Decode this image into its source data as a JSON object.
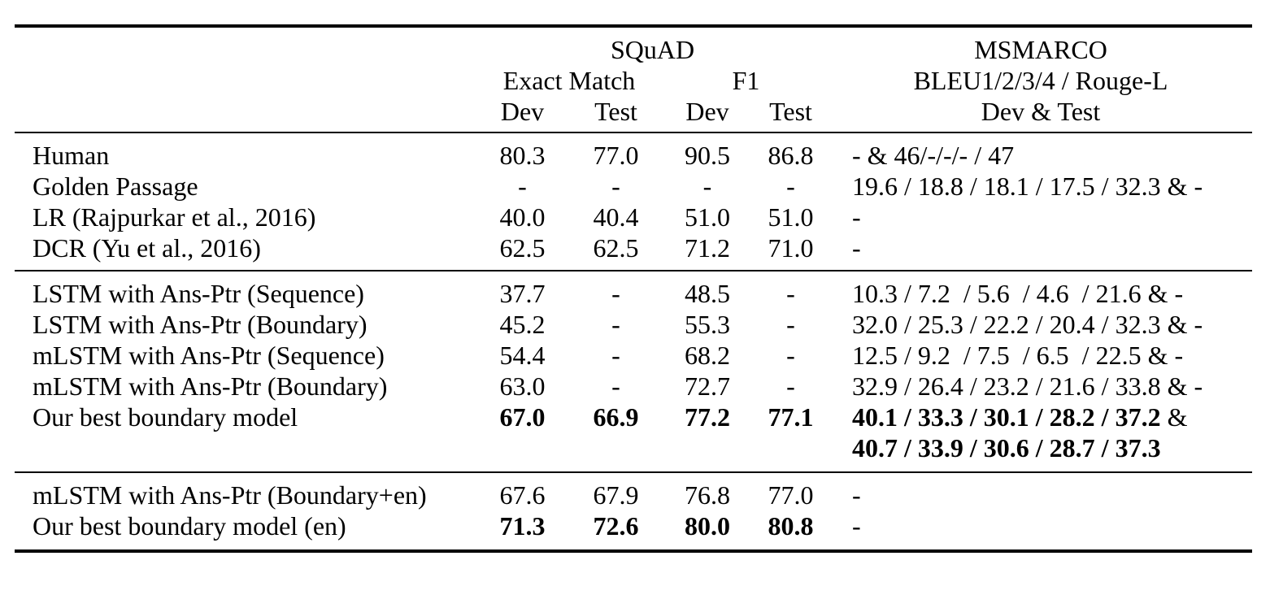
{
  "header": {
    "squad_title": "SQuAD",
    "msmarco_title": "MSMARCO",
    "exact_match_label": "Exact Match",
    "f1_label": "F1",
    "bleu_label": "BLEU1/2/3/4 / Rouge-L",
    "em_dev_label": "Dev",
    "em_test_label": "Test",
    "f1_dev_label": "Dev",
    "f1_test_label": "Test",
    "msmarco_devtest_label": "Dev & Test"
  },
  "sections": [
    {
      "rows": [
        {
          "model": "Human",
          "em_dev": "80.3",
          "em_test": "77.0",
          "f1_dev": "90.5",
          "f1_test": "86.8",
          "msmarco": "- & 46/-/-/- / 47"
        },
        {
          "model": "Golden Passage",
          "em_dev": "-",
          "em_test": "-",
          "f1_dev": "-",
          "f1_test": "-",
          "msmarco": "19.6 / 18.8 / 18.1 / 17.5 / 32.3 & -"
        },
        {
          "model": "LR (Rajpurkar et al., 2016)",
          "em_dev": "40.0",
          "em_test": "40.4",
          "f1_dev": "51.0",
          "f1_test": "51.0",
          "msmarco": "-"
        },
        {
          "model": "DCR (Yu et al., 2016)",
          "em_dev": "62.5",
          "em_test": "62.5",
          "f1_dev": "71.2",
          "f1_test": "71.0",
          "msmarco": "-"
        }
      ]
    },
    {
      "rows": [
        {
          "model": "LSTM with Ans-Ptr (Sequence)",
          "em_dev": "37.7",
          "em_test": "-",
          "f1_dev": "48.5",
          "f1_test": "-",
          "msmarco": "10.3 / 7.2  / 5.6  / 4.6  / 21.6 & -"
        },
        {
          "model": "LSTM with Ans-Ptr (Boundary)",
          "em_dev": "45.2",
          "em_test": "-",
          "f1_dev": "55.3",
          "f1_test": "-",
          "msmarco": "32.0 / 25.3 / 22.2 / 20.4 / 32.3 & -"
        },
        {
          "model": "mLSTM with Ans-Ptr (Sequence)",
          "em_dev": "54.4",
          "em_test": "-",
          "f1_dev": "68.2",
          "f1_test": "-",
          "msmarco": "12.5 / 9.2  / 7.5  / 6.5  / 22.5 & -"
        },
        {
          "model": "mLSTM with Ans-Ptr (Boundary)",
          "em_dev": "63.0",
          "em_test": "-",
          "f1_dev": "72.7",
          "f1_test": "-",
          "msmarco": "32.9 / 26.4 / 23.2 / 21.6 / 33.8 & -"
        },
        {
          "model": "Our best boundary model",
          "em_dev": "67.0",
          "em_test": "66.9",
          "f1_dev": "77.2",
          "f1_test": "77.1",
          "msmarco_bold_line1": "40.1 / 33.3 / 30.1 / 28.2 / 37.2",
          "msmarco_line1_suffix": " &",
          "msmarco_bold_line2": "40.7 / 33.9 / 30.6 / 28.7 / 37.3"
        }
      ]
    },
    {
      "rows": [
        {
          "model": "mLSTM with Ans-Ptr (Boundary+en)",
          "em_dev": "67.6",
          "em_test": "67.9",
          "f1_dev": "76.8",
          "f1_test": "77.0",
          "msmarco": "-"
        },
        {
          "model": "Our best boundary model (en)",
          "em_dev": "71.3",
          "em_test": "72.6",
          "f1_dev": "80.0",
          "f1_test": "80.8",
          "msmarco": "-"
        }
      ]
    }
  ]
}
